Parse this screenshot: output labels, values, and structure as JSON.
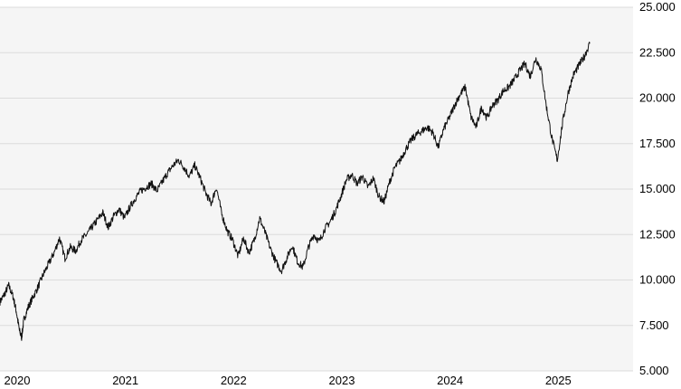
{
  "chart_data": {
    "type": "line",
    "title": "",
    "xlabel": "",
    "ylabel": "",
    "grid": true,
    "legend": "none",
    "y_axis_side": "right",
    "plot_background": "#f5f5f5",
    "line_color": "#111111",
    "ylim": [
      5000,
      25000
    ],
    "xlim": [
      2020.0,
      2025.85
    ],
    "y_ticks": [
      {
        "value": 5000,
        "label": "5.000"
      },
      {
        "value": 7500,
        "label": "7.500"
      },
      {
        "value": 10000,
        "label": "10.000"
      },
      {
        "value": 12500,
        "label": "12.500"
      },
      {
        "value": 15000,
        "label": "15.000"
      },
      {
        "value": 17500,
        "label": "17.500"
      },
      {
        "value": 20000,
        "label": "20.000"
      },
      {
        "value": 22500,
        "label": "22.500"
      },
      {
        "value": 25000,
        "label": "25.000"
      }
    ],
    "x_ticks": [
      {
        "value": 2020.0,
        "label": "2020"
      },
      {
        "value": 2021.0,
        "label": "2021"
      },
      {
        "value": 2022.0,
        "label": "2022"
      },
      {
        "value": 2023.0,
        "label": "2023"
      },
      {
        "value": 2024.0,
        "label": "2024"
      },
      {
        "value": 2025.0,
        "label": "2025"
      }
    ],
    "series": [
      {
        "x": [
          2020.0,
          2020.04,
          2020.08,
          2020.12,
          2020.15,
          2020.18,
          2020.2,
          2020.22,
          2020.26,
          2020.3,
          2020.35,
          2020.4,
          2020.45,
          2020.5,
          2020.55,
          2020.6,
          2020.65,
          2020.7,
          2020.75,
          2020.8,
          2020.85,
          2020.9,
          2020.95,
          2021.0,
          2021.05,
          2021.1,
          2021.15,
          2021.2,
          2021.25,
          2021.3,
          2021.35,
          2021.4,
          2021.45,
          2021.5,
          2021.55,
          2021.6,
          2021.65,
          2021.7,
          2021.75,
          2021.8,
          2021.85,
          2021.9,
          2021.95,
          2022.0,
          2022.05,
          2022.1,
          2022.15,
          2022.2,
          2022.25,
          2022.3,
          2022.35,
          2022.4,
          2022.45,
          2022.5,
          2022.55,
          2022.6,
          2022.65,
          2022.7,
          2022.75,
          2022.8,
          2022.85,
          2022.9,
          2022.95,
          2023.0,
          2023.05,
          2023.1,
          2023.15,
          2023.2,
          2023.25,
          2023.3,
          2023.35,
          2023.4,
          2023.45,
          2023.5,
          2023.55,
          2023.6,
          2023.65,
          2023.7,
          2023.75,
          2023.8,
          2023.85,
          2023.9,
          2023.95,
          2024.0,
          2024.05,
          2024.1,
          2024.15,
          2024.2,
          2024.25,
          2024.3,
          2024.35,
          2024.4,
          2024.45,
          2024.5,
          2024.55,
          2024.6,
          2024.65,
          2024.7,
          2024.75,
          2024.8,
          2024.85,
          2024.9,
          2024.95,
          2025.0,
          2025.05,
          2025.1,
          2025.15,
          2025.2,
          2025.25,
          2025.3,
          2025.35,
          2025.4,
          2025.45
        ],
        "values": [
          8800,
          9200,
          9700,
          9100,
          8300,
          7200,
          6850,
          7800,
          8500,
          9000,
          9600,
          10300,
          10900,
          11500,
          12300,
          11200,
          11800,
          11600,
          12200,
          12500,
          12900,
          13300,
          13700,
          12900,
          13500,
          13900,
          13400,
          14000,
          14500,
          14900,
          15100,
          15300,
          14900,
          15400,
          15900,
          16300,
          16600,
          16200,
          15700,
          16300,
          15600,
          14800,
          14200,
          15100,
          13600,
          12700,
          12200,
          11300,
          12300,
          11500,
          12200,
          13400,
          12600,
          11700,
          11000,
          10500,
          11200,
          11900,
          11000,
          10700,
          11800,
          12500,
          12100,
          12800,
          13200,
          13800,
          14600,
          15500,
          15800,
          15300,
          15700,
          15100,
          15600,
          14600,
          14300,
          15400,
          16200,
          16600,
          17200,
          17700,
          18000,
          18200,
          18400,
          18100,
          17300,
          18300,
          18900,
          19600,
          20200,
          20600,
          19000,
          18400,
          19500,
          18900,
          19600,
          19900,
          20400,
          20600,
          21000,
          21500,
          21900,
          21200,
          22200,
          21600,
          19500,
          17800,
          16600,
          18700,
          20300,
          21300,
          21800,
          22300,
          23000
        ]
      }
    ]
  }
}
